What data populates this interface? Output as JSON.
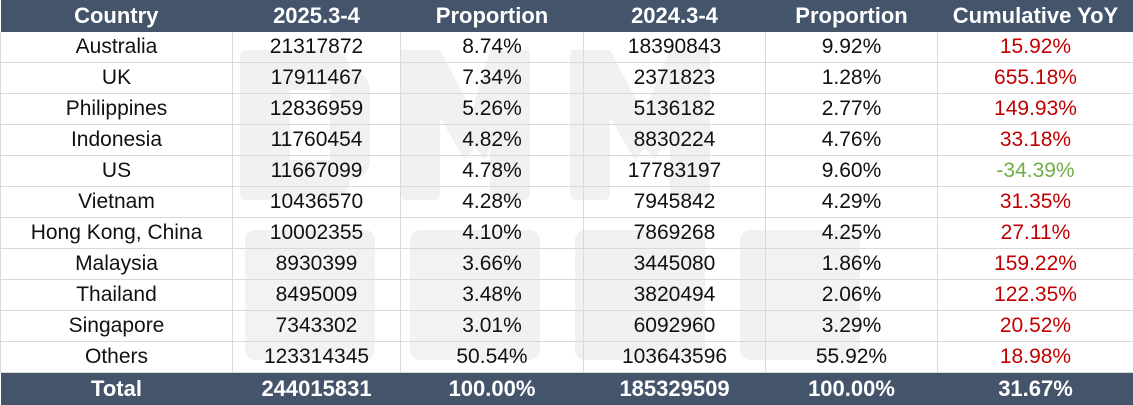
{
  "table": {
    "headers": [
      "Country",
      "2025.3-4",
      "Proportion",
      "2024.3-4",
      "Proportion",
      "Cumulative YoY"
    ],
    "rows": [
      {
        "country": "Australia",
        "v2025": "21317872",
        "p2025": "8.74%",
        "v2024": "18390843",
        "p2024": "9.92%",
        "yoy": "15.92%"
      },
      {
        "country": "UK",
        "v2025": "17911467",
        "p2025": "7.34%",
        "v2024": "2371823",
        "p2024": "1.28%",
        "yoy": "655.18%"
      },
      {
        "country": "Philippines",
        "v2025": "12836959",
        "p2025": "5.26%",
        "v2024": "5136182",
        "p2024": "2.77%",
        "yoy": "149.93%"
      },
      {
        "country": "Indonesia",
        "v2025": "11760454",
        "p2025": "4.82%",
        "v2024": "8830224",
        "p2024": "4.76%",
        "yoy": "33.18%"
      },
      {
        "country": "US",
        "v2025": "11667099",
        "p2025": "4.78%",
        "v2024": "17783197",
        "p2024": "9.60%",
        "yoy": "-34.39%"
      },
      {
        "country": "Vietnam",
        "v2025": "10436570",
        "p2025": "4.28%",
        "v2024": "7945842",
        "p2024": "4.29%",
        "yoy": "31.35%"
      },
      {
        "country": "Hong Kong, China",
        "v2025": "10002355",
        "p2025": "4.10%",
        "v2024": "7869268",
        "p2024": "4.25%",
        "yoy": "27.11%"
      },
      {
        "country": "Malaysia",
        "v2025": "8930399",
        "p2025": "3.66%",
        "v2024": "3445080",
        "p2024": "1.86%",
        "yoy": "159.22%"
      },
      {
        "country": "Thailand",
        "v2025": "8495009",
        "p2025": "3.48%",
        "v2024": "3820494",
        "p2024": "2.06%",
        "yoy": "122.35%"
      },
      {
        "country": "Singapore",
        "v2025": "7343302",
        "p2025": "3.01%",
        "v2024": "6092960",
        "p2024": "3.29%",
        "yoy": "20.52%"
      },
      {
        "country": "Others",
        "v2025": "123314345",
        "p2025": "50.54%",
        "v2024": "103643596",
        "p2024": "55.92%",
        "yoy": "18.98%"
      }
    ],
    "total": {
      "country": "Total",
      "v2025": "244015831",
      "p2025": "100.00%",
      "v2024": "185329509",
      "p2024": "100.00%",
      "yoy": "31.67%"
    }
  },
  "colors": {
    "header_bg": "#44546a",
    "positive": "#c00000",
    "negative": "#70ad47",
    "grid": "#d9d9d9"
  }
}
